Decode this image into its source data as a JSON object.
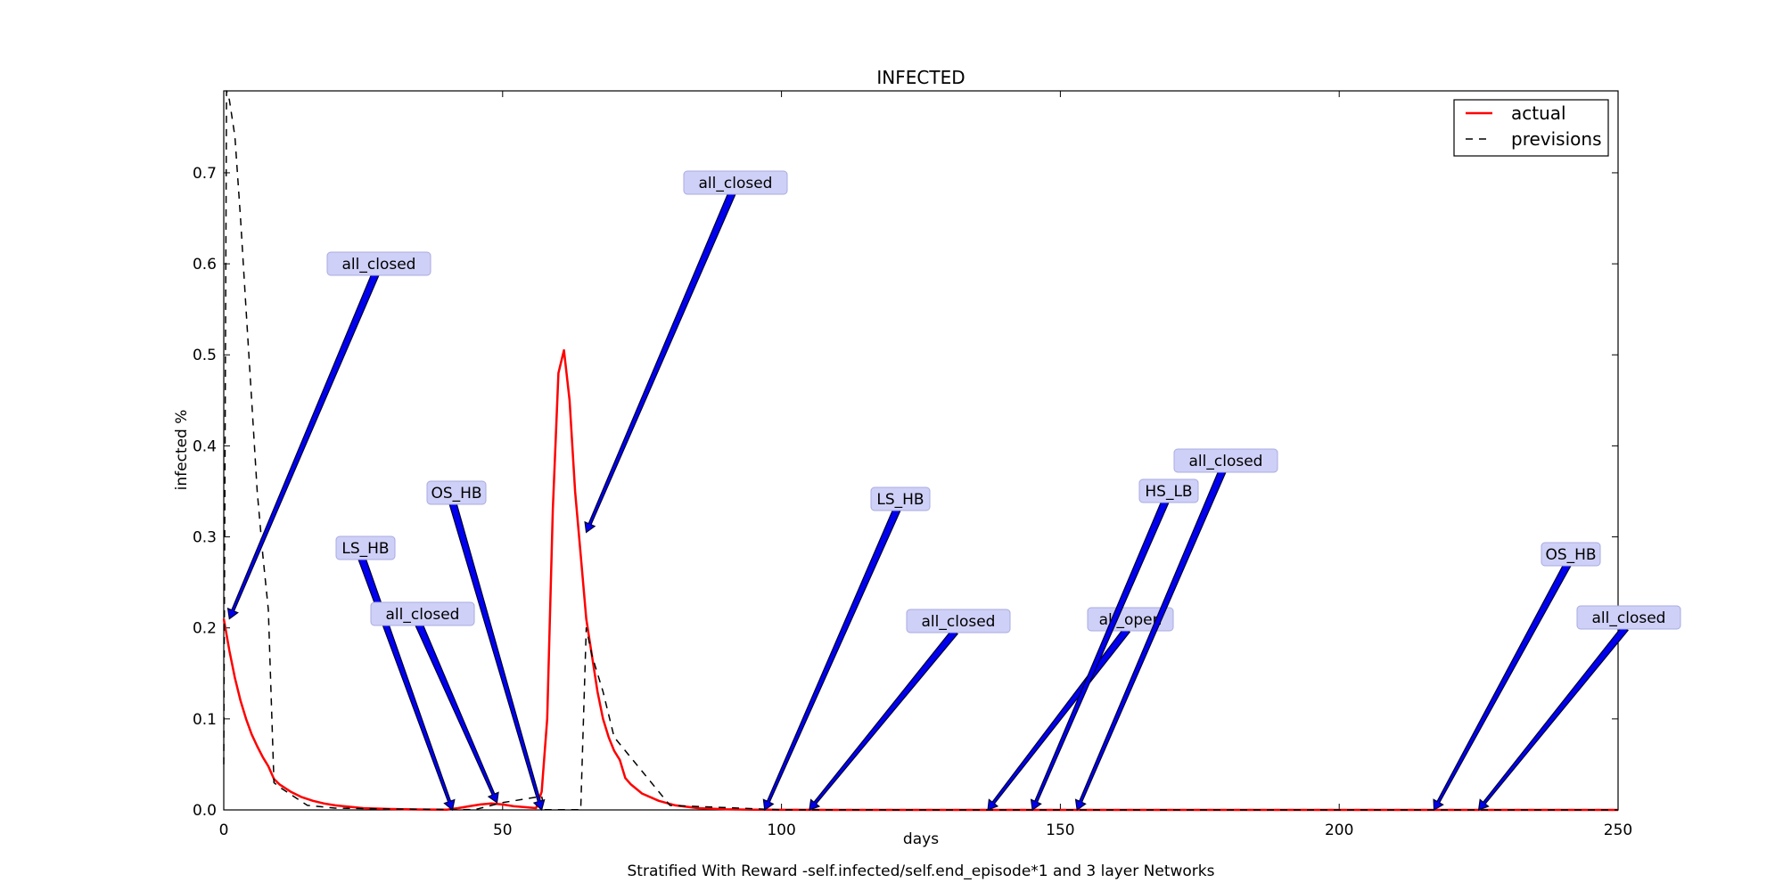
{
  "chart_data": {
    "type": "line",
    "title": "INFECTED",
    "xlabel": "days",
    "ylabel": "infected %",
    "caption": "Stratified With Reward -self.infected/self.end_episode*1 and 3 layer Networks",
    "xlim": [
      0,
      250
    ],
    "ylim": [
      0,
      0.79
    ],
    "xticks": [
      0,
      50,
      100,
      150,
      200,
      250
    ],
    "xtick_labels": [
      "0",
      "50",
      "100",
      "150",
      "200",
      "250"
    ],
    "yticks": [
      0.0,
      0.1,
      0.2,
      0.3,
      0.4,
      0.5,
      0.6,
      0.7
    ],
    "ytick_labels": [
      "0.0",
      "0.1",
      "0.2",
      "0.3",
      "0.4",
      "0.5",
      "0.6",
      "0.7"
    ],
    "grid": false,
    "legend_position": "top-right",
    "series": [
      {
        "name": "actual",
        "color": "#ff0000",
        "style": "solid",
        "x": [
          0,
          1,
          2,
          3,
          4,
          5,
          6,
          7,
          8,
          9,
          10,
          12,
          14,
          16,
          18,
          20,
          25,
          30,
          35,
          40,
          42,
          44,
          46,
          48,
          50,
          52,
          54,
          56,
          57,
          58,
          59,
          60,
          61,
          62,
          63,
          64,
          65,
          66,
          67,
          68,
          69,
          70,
          71,
          72,
          73,
          75,
          78,
          81,
          85,
          90,
          95,
          100,
          110,
          120,
          130,
          140,
          150,
          160,
          170,
          180,
          190,
          200,
          210,
          220,
          230,
          240,
          250
        ],
        "y": [
          0.21,
          0.175,
          0.145,
          0.12,
          0.1,
          0.083,
          0.07,
          0.058,
          0.048,
          0.034,
          0.028,
          0.02,
          0.014,
          0.01,
          0.007,
          0.005,
          0.002,
          0.001,
          0.0005,
          0.0003,
          0.002,
          0.004,
          0.006,
          0.007,
          0.006,
          0.004,
          0.003,
          0.002,
          0.02,
          0.1,
          0.33,
          0.48,
          0.505,
          0.45,
          0.35,
          0.28,
          0.21,
          0.17,
          0.13,
          0.1,
          0.08,
          0.065,
          0.055,
          0.035,
          0.028,
          0.018,
          0.01,
          0.005,
          0.002,
          0.0008,
          0.0003,
          0.0001,
          0,
          0,
          0,
          0,
          0,
          0,
          0,
          0,
          0,
          0,
          0,
          0,
          0,
          0,
          0
        ]
      },
      {
        "name": "previsions",
        "color": "#000000",
        "style": "dashed",
        "x": [
          0,
          0.5,
          1,
          2,
          3,
          4,
          5,
          6,
          7,
          8,
          9,
          10,
          15,
          20,
          30,
          40,
          45,
          50,
          57,
          57.5,
          62,
          64,
          65,
          66,
          68,
          70,
          80,
          100,
          150,
          200,
          250
        ],
        "y": [
          0.05,
          0.79,
          0.78,
          0.74,
          0.65,
          0.55,
          0.45,
          0.35,
          0.28,
          0.22,
          0.03,
          0.025,
          0.005,
          0.002,
          0.001,
          0.0005,
          0.0003,
          0.008,
          0.015,
          0.0003,
          0.0002,
          0.0002,
          0.2,
          0.17,
          0.13,
          0.08,
          0.005,
          0.0001,
          0,
          0,
          0
        ]
      }
    ],
    "annotations": [
      {
        "text": "all_closed",
        "x": 1,
        "y": 0.21
      },
      {
        "text": "LS_HB",
        "x": 41,
        "y": 0.0
      },
      {
        "text": "all_closed",
        "x": 49,
        "y": 0.008
      },
      {
        "text": "OS_HB",
        "x": 57,
        "y": 0.0
      },
      {
        "text": "all_closed",
        "x": 65,
        "y": 0.305
      },
      {
        "text": "LS_HB",
        "x": 97,
        "y": 0.0
      },
      {
        "text": "all_closed",
        "x": 105,
        "y": 0.0
      },
      {
        "text": "all_open",
        "x": 137,
        "y": 0.0
      },
      {
        "text": "HS_LB",
        "x": 145,
        "y": 0.0
      },
      {
        "text": "all_closed",
        "x": 153,
        "y": 0.0
      },
      {
        "text": "OS_HB",
        "x": 217,
        "y": 0.0
      },
      {
        "text": "all_closed",
        "x": 225,
        "y": 0.0
      }
    ]
  }
}
